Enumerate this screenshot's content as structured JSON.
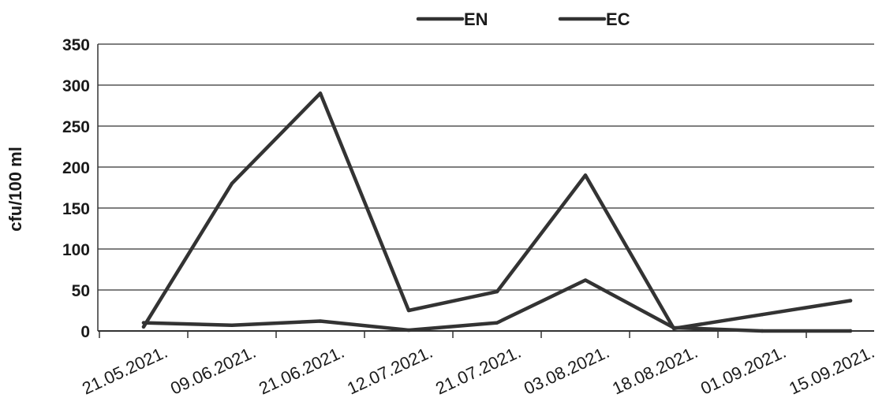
{
  "chart_data": {
    "type": "line",
    "title": "",
    "xlabel": "",
    "ylabel": "cfu/100 ml",
    "ylim": [
      0,
      350
    ],
    "yticks": [
      0,
      50,
      100,
      150,
      200,
      250,
      300,
      350
    ],
    "grid": true,
    "legend_position": "top-center",
    "categories": [
      "21.05.2021.",
      "09.06.2021.",
      "21.06.2021.",
      "12.07.2021.",
      "21.07.2021.",
      "03.08.2021.",
      "18.08.2021.",
      "01.09.2021.",
      "15.09.2021."
    ],
    "series": [
      {
        "name": "EN",
        "color": "#333333",
        "values": [
          5,
          180,
          290,
          25,
          48,
          190,
          3,
          20,
          37
        ]
      },
      {
        "name": "EC",
        "color": "#333333",
        "values": [
          10,
          7,
          12,
          1,
          10,
          62,
          4,
          0,
          0
        ]
      }
    ]
  }
}
